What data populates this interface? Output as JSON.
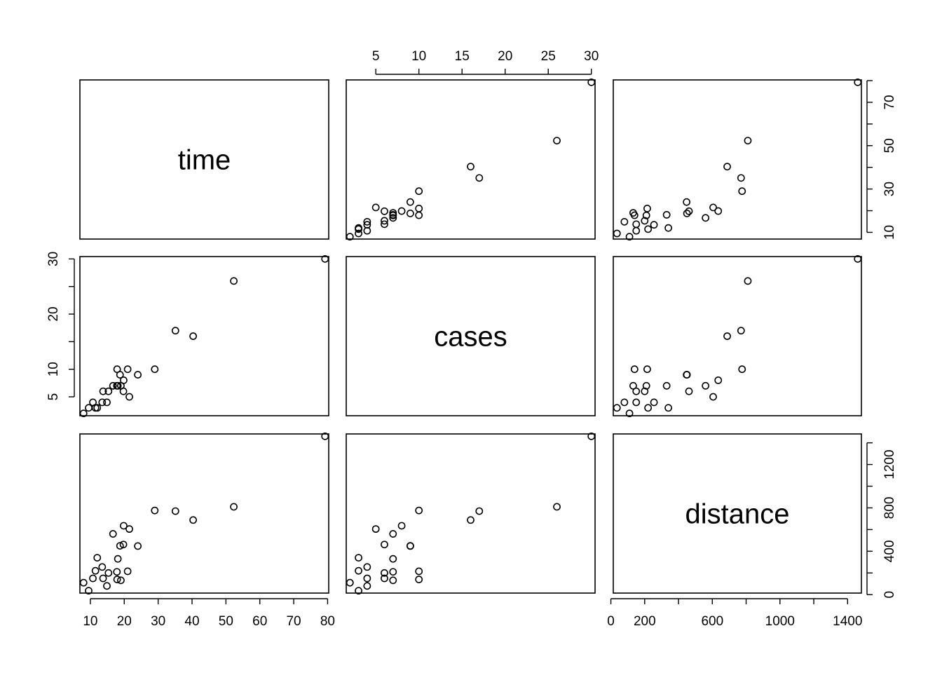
{
  "chart_data": {
    "type": "scatter",
    "title": "",
    "variables": [
      "time",
      "cases",
      "distance"
    ],
    "ranges": {
      "time": [
        8,
        79.24
      ],
      "cases": [
        2,
        30
      ],
      "distance": [
        36,
        1460
      ]
    },
    "ticks": {
      "time": [
        10,
        20,
        30,
        40,
        50,
        60,
        70,
        80
      ],
      "cases": [
        5,
        10,
        15,
        20,
        25,
        30
      ],
      "distance": [
        0,
        200,
        400,
        600,
        800,
        1000,
        1200,
        1400
      ]
    },
    "tick_labels": {
      "time_bottom": [
        "10",
        "20",
        "30",
        "40",
        "50",
        "60",
        "70",
        "80"
      ],
      "time_right": [
        "10",
        "30",
        "50",
        "70"
      ],
      "cases_top": [
        "5",
        "10",
        "15",
        "20",
        "25",
        "30"
      ],
      "cases_left": [
        "5",
        "10",
        "20",
        "30"
      ],
      "distance_bottom": [
        "0",
        "200",
        "600",
        "1000",
        "1400"
      ],
      "distance_right": [
        "0",
        "400",
        "800",
        "1200"
      ]
    },
    "grid": false,
    "data": {
      "time": [
        16.68,
        11.5,
        12.03,
        14.88,
        13.75,
        18.11,
        8.0,
        17.83,
        79.24,
        21.5,
        40.33,
        21.0,
        13.5,
        19.75,
        24.0,
        29.0,
        15.35,
        19.0,
        9.5,
        35.1,
        17.9,
        52.32,
        18.75,
        19.83,
        10.75
      ],
      "cases": [
        7,
        3,
        3,
        4,
        6,
        7,
        2,
        7,
        30,
        5,
        16,
        10,
        4,
        6,
        9,
        10,
        6,
        7,
        3,
        17,
        10,
        26,
        9,
        8,
        4
      ],
      "distance": [
        560,
        220,
        340,
        80,
        150,
        330,
        110,
        210,
        1460,
        605,
        688,
        215,
        255,
        462,
        448,
        776,
        200,
        132,
        36,
        770,
        140,
        810,
        450,
        635,
        150
      ]
    }
  }
}
